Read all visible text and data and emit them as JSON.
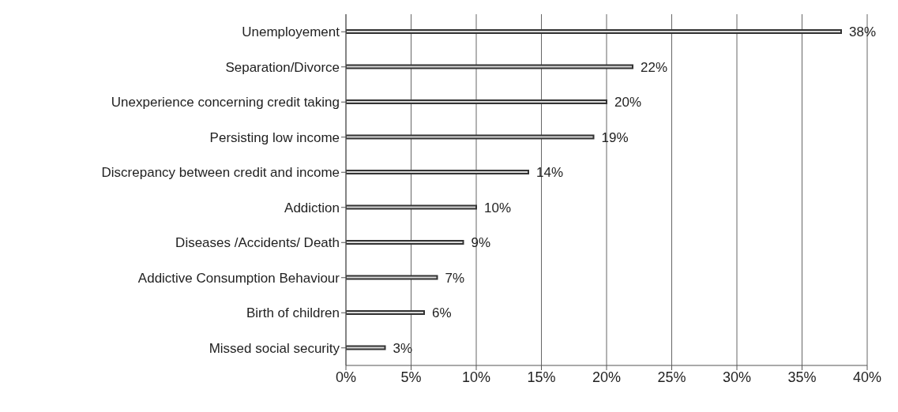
{
  "chart_data": {
    "type": "bar",
    "orientation": "horizontal",
    "categories": [
      "Unemployement",
      "Separation/Divorce",
      "Unexperience concerning credit taking",
      "Persisting low income",
      "Discrepancy between credit and income",
      "Addiction",
      "Diseases /Accidents/ Death",
      "Addictive Consumption Behaviour",
      "Birth of children",
      "Missed social security"
    ],
    "values": [
      38,
      22,
      20,
      19,
      14,
      10,
      9,
      7,
      6,
      3
    ],
    "value_labels": [
      "38%",
      "22%",
      "20%",
      "19%",
      "14%",
      "10%",
      "9%",
      "7%",
      "6%",
      "3%"
    ],
    "color": "#d9d9d9",
    "xlim": [
      0,
      40
    ],
    "xticks": [
      {
        "value": 0,
        "label": "0%"
      },
      {
        "value": 5,
        "label": "5%"
      },
      {
        "value": 10,
        "label": "10%"
      },
      {
        "value": 15,
        "label": "15%"
      },
      {
        "value": 20,
        "label": "20%"
      },
      {
        "value": 25,
        "label": "25%"
      },
      {
        "value": 30,
        "label": "30%"
      },
      {
        "value": 35,
        "label": "35%"
      },
      {
        "value": 40,
        "label": "40%"
      }
    ],
    "grid": "x"
  }
}
